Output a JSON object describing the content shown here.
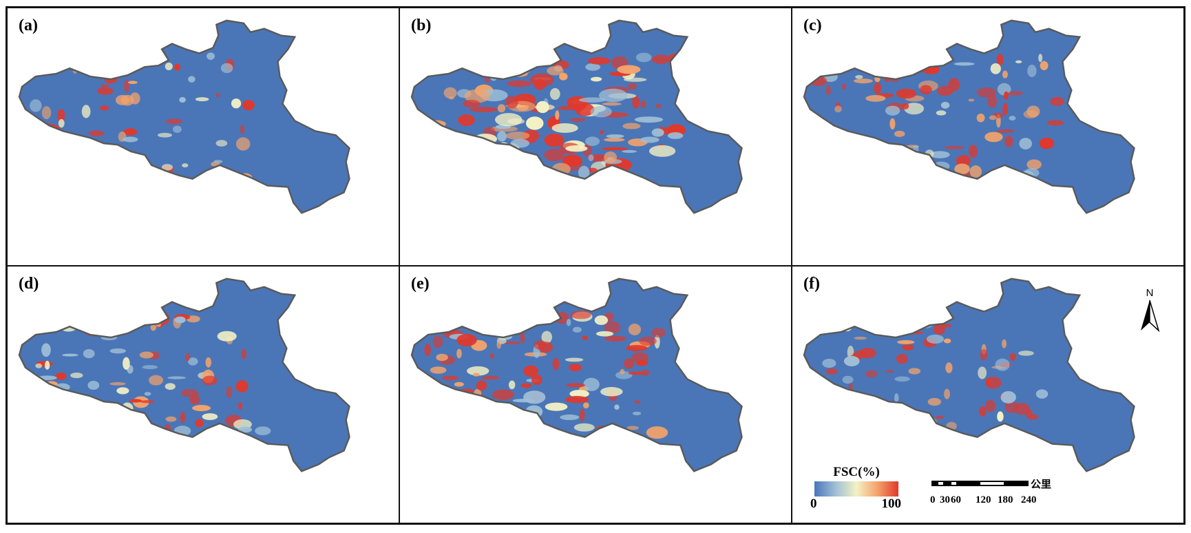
{
  "panels": [
    {
      "label": "(a)",
      "blue": "#4a76b8",
      "snow_level": 0.18
    },
    {
      "label": "(b)",
      "blue": "#4a76b8",
      "snow_level": 0.72
    },
    {
      "label": "(c)",
      "blue": "#4a76b8",
      "snow_level": 0.38
    },
    {
      "label": "(d)",
      "blue": "#4a76b8",
      "snow_level": 0.35
    },
    {
      "label": "(e)",
      "blue": "#4a76b8",
      "snow_level": 0.5
    },
    {
      "label": "(f)",
      "blue": "#4a76b8",
      "snow_level": 0.22
    }
  ],
  "legend": {
    "title": "FSC(%)",
    "min": "0",
    "max": "100",
    "colors": [
      "#4a76b8",
      "#9fbfd6",
      "#f3f1c4",
      "#f3a36b",
      "#e1382b"
    ]
  },
  "scalebar": {
    "ticks": [
      "0",
      "30",
      "60",
      "120",
      "180",
      "240"
    ],
    "unit": "公里"
  },
  "north_arrow": {
    "label": "N"
  }
}
